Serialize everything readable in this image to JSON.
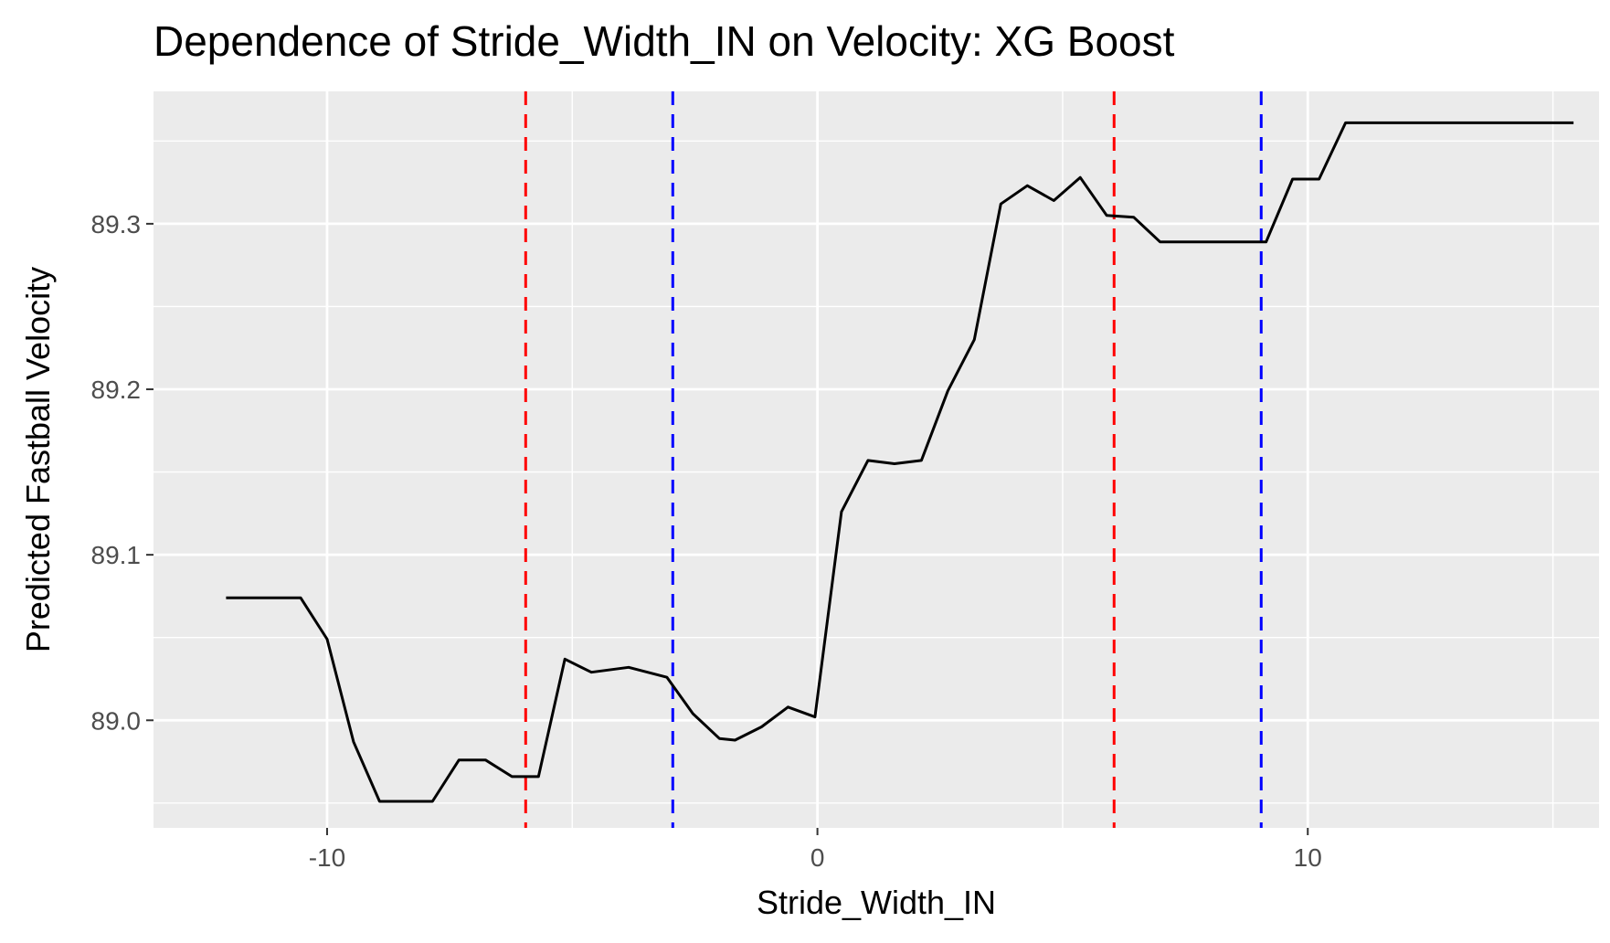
{
  "chart_data": {
    "type": "line",
    "title": "Dependence of Stride_Width_IN on Velocity: XG Boost",
    "xlabel": "Stride_Width_IN",
    "ylabel": "Predicted Fastball Velocity",
    "xlim": [
      -13.54,
      15.94
    ],
    "ylim": [
      88.935,
      89.38
    ],
    "x_ticks": [
      {
        "value": -10,
        "label": "-10"
      },
      {
        "value": 0,
        "label": "0"
      },
      {
        "value": 10,
        "label": "10"
      }
    ],
    "x_minor_ticks": [
      -15,
      -5,
      5,
      15
    ],
    "y_ticks": [
      {
        "value": 89.0,
        "label": "89.0"
      },
      {
        "value": 89.1,
        "label": "89.1"
      },
      {
        "value": 89.2,
        "label": "89.2"
      },
      {
        "value": 89.3,
        "label": "89.3"
      }
    ],
    "y_minor_ticks": [
      88.95,
      89.05,
      89.15,
      89.25,
      89.35
    ],
    "grid": true,
    "background": "#ebebeb",
    "series": [
      {
        "color": "#000000",
        "x": [
          -12.06,
          -10.54,
          -10.0,
          -9.46,
          -8.93,
          -7.85,
          -7.31,
          -6.77,
          -6.23,
          -5.69,
          -5.15,
          -4.61,
          -3.85,
          -3.07,
          -2.54,
          -2.0,
          -1.68,
          -1.14,
          -0.6,
          -0.05,
          0.49,
          1.03,
          1.57,
          2.12,
          2.66,
          3.2,
          3.74,
          4.28,
          4.82,
          5.36,
          5.9,
          6.45,
          6.99,
          7.53,
          8.61,
          9.15,
          9.69,
          10.23,
          10.77,
          15.42
        ],
        "y": [
          89.074,
          89.074,
          89.049,
          88.987,
          88.951,
          88.951,
          88.976,
          88.976,
          88.966,
          88.966,
          89.037,
          89.029,
          89.032,
          89.026,
          89.004,
          88.989,
          88.988,
          88.996,
          89.008,
          89.002,
          89.126,
          89.157,
          89.155,
          89.157,
          89.199,
          89.23,
          89.312,
          89.323,
          89.314,
          89.328,
          89.305,
          89.304,
          89.289,
          89.289,
          89.289,
          89.289,
          89.327,
          89.327,
          89.361,
          89.361
        ]
      }
    ],
    "reference_lines": [
      {
        "x": -5.95,
        "color": "#ff0000",
        "style": "dashed"
      },
      {
        "x": -2.95,
        "color": "#0000ff",
        "style": "dashed"
      },
      {
        "x": 6.05,
        "color": "#ff0000",
        "style": "dashed"
      },
      {
        "x": 9.05,
        "color": "#0000ff",
        "style": "dashed"
      }
    ]
  }
}
